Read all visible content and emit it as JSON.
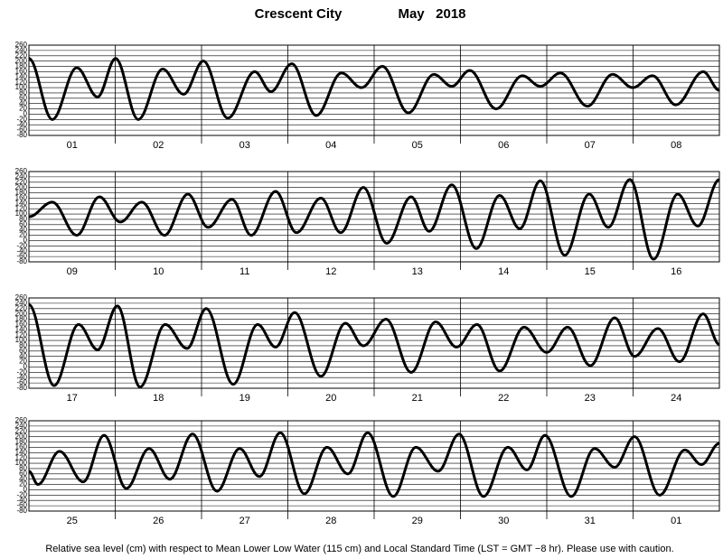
{
  "title": "Crescent City",
  "date": "May   2018",
  "caption": "Relative sea level (cm) with respect to Mean Lower Low Water (115 cm) and Local Standard Time (LST = GMT −8 hr). Please use with caution.",
  "chart_data": [
    {
      "type": "line",
      "categories": [
        "01",
        "02",
        "03",
        "04",
        "05",
        "06",
        "07",
        "08"
      ],
      "x": [
        0,
        6.5,
        13.3,
        19.1,
        24.1,
        30.4,
        37.2,
        43,
        48.5,
        55.3,
        62.8,
        67.3,
        73.1,
        79.9,
        86.9,
        92.5,
        98.3,
        105.5,
        112.6,
        117.6,
        122.6,
        129.9,
        137.2,
        142.2,
        147.8,
        155.3,
        162.3,
        167.9,
        173.4,
        179.9,
        187.5,
        192
      ],
      "values": [
        210,
        -20,
        175,
        65,
        210,
        -20,
        170,
        75,
        200,
        -15,
        160,
        85,
        190,
        -5,
        155,
        100,
        180,
        5,
        150,
        105,
        165,
        20,
        145,
        105,
        155,
        30,
        150,
        100,
        145,
        35,
        160,
        90
      ],
      "xlim": [
        0,
        192
      ],
      "ylim": [
        -80,
        260
      ],
      "yticks": [
        -80,
        -60,
        -40,
        -20,
        0,
        20,
        40,
        60,
        80,
        100,
        120,
        140,
        160,
        180,
        200,
        220,
        240,
        260
      ],
      "grid": true,
      "color": "#000000"
    },
    {
      "type": "line",
      "categories": [
        "09",
        "10",
        "11",
        "12",
        "13",
        "14",
        "15",
        "16"
      ],
      "x": [
        0,
        6.5,
        13.3,
        19.6,
        25.4,
        31.4,
        37.7,
        44.2,
        49.8,
        56.5,
        61.8,
        68.6,
        74.4,
        81.2,
        86.7,
        93,
        99.5,
        106.3,
        111.3,
        117.6,
        124.4,
        130.9,
        136.5,
        142.2,
        149,
        155.8,
        161.1,
        167.1,
        173.7,
        180.4,
        186,
        192
      ],
      "values": [
        90,
        145,
        20,
        165,
        70,
        145,
        20,
        175,
        50,
        155,
        20,
        185,
        30,
        160,
        30,
        200,
        -10,
        165,
        35,
        210,
        -30,
        170,
        45,
        225,
        -55,
        175,
        50,
        230,
        -70,
        175,
        55,
        230
      ],
      "xlim": [
        0,
        192
      ],
      "ylim": [
        -80,
        260
      ],
      "yticks": [
        -80,
        -60,
        -40,
        -20,
        0,
        20,
        40,
        60,
        80,
        100,
        120,
        140,
        160,
        180,
        200,
        220,
        240,
        260
      ],
      "grid": true,
      "color": "#000000"
    },
    {
      "type": "line",
      "categories": [
        "17",
        "18",
        "19",
        "20",
        "21",
        "22",
        "23",
        "24"
      ],
      "x": [
        0,
        7,
        13.8,
        19.1,
        24.6,
        30.9,
        37.9,
        44,
        49.3,
        56.8,
        63.6,
        68.6,
        73.9,
        81.2,
        88,
        93,
        99.3,
        106.3,
        113.1,
        118.9,
        124.6,
        130.9,
        137.7,
        144,
        149.8,
        156.1,
        162.9,
        168.4,
        174.9,
        180.9,
        187.5,
        192
      ],
      "values": [
        235,
        -70,
        160,
        65,
        230,
        -75,
        160,
        70,
        220,
        -65,
        160,
        75,
        205,
        -35,
        165,
        80,
        180,
        -20,
        170,
        75,
        160,
        -15,
        150,
        55,
        150,
        5,
        185,
        40,
        145,
        20,
        200,
        85
      ],
      "xlim": [
        0,
        192
      ],
      "ylim": [
        -80,
        260
      ],
      "yticks": [
        -80,
        -60,
        -40,
        -20,
        0,
        20,
        40,
        60,
        80,
        100,
        120,
        140,
        160,
        180,
        200,
        220,
        240,
        260
      ],
      "grid": true,
      "color": "#000000"
    },
    {
      "type": "line",
      "categories": [
        "25",
        "26",
        "27",
        "28",
        "29",
        "30",
        "31",
        "01"
      ],
      "x": [
        0,
        2.5,
        8.5,
        15.1,
        20.9,
        27.1,
        33.4,
        39.2,
        45.5,
        52.3,
        58.6,
        64.1,
        69.9,
        76.6,
        82.9,
        88.7,
        94.2,
        101.3,
        107.6,
        113.8,
        119.6,
        126.4,
        133.2,
        138.5,
        143.5,
        150.8,
        157.3,
        162.9,
        168.4,
        175.4,
        182.4,
        187,
        192
      ],
      "values": [
        70,
        20,
        145,
        30,
        205,
        5,
        155,
        40,
        210,
        -5,
        155,
        50,
        215,
        -15,
        160,
        60,
        215,
        -25,
        160,
        70,
        210,
        -25,
        160,
        75,
        205,
        -25,
        155,
        85,
        200,
        -20,
        150,
        95,
        175
      ],
      "xlim": [
        0,
        192
      ],
      "ylim": [
        -80,
        260
      ],
      "yticks": [
        -80,
        -60,
        -40,
        -20,
        0,
        20,
        40,
        60,
        80,
        100,
        120,
        140,
        160,
        180,
        200,
        220,
        240,
        260
      ],
      "grid": true,
      "color": "#000000"
    }
  ]
}
